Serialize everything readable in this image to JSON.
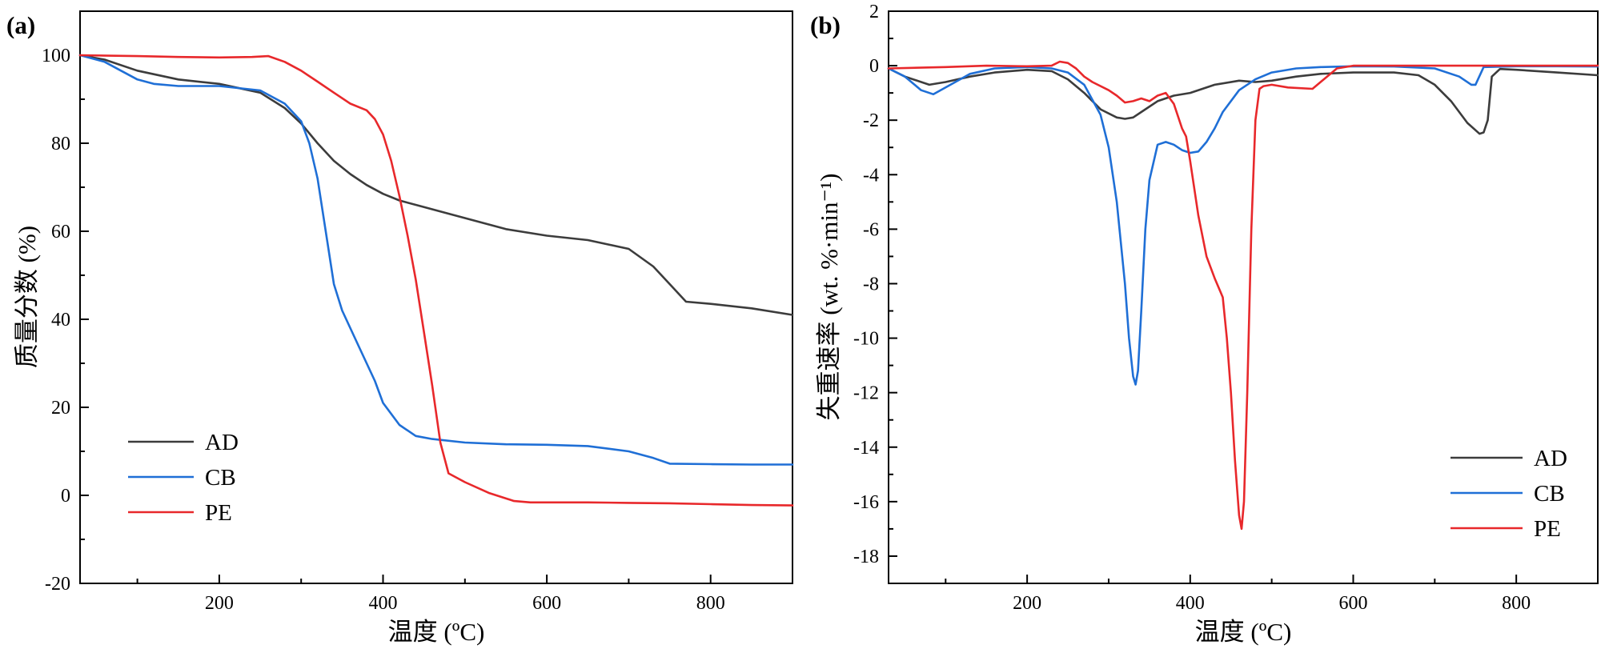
{
  "chart_data": [
    {
      "type": "line",
      "panel_label": "(a)",
      "xlabel": "温度 (ºC)",
      "ylabel": "质量分数 (%)",
      "xlim": [
        30,
        900
      ],
      "ylim": [
        -20,
        110
      ],
      "xticks": [
        200,
        400,
        600,
        800
      ],
      "yticks": [
        -20,
        0,
        20,
        40,
        60,
        80,
        100
      ],
      "grid": false,
      "legend_position": "bottom-left",
      "series": [
        {
          "name": "AD",
          "color": "#3c3c3c",
          "x": [
            30,
            60,
            100,
            150,
            200,
            250,
            280,
            300,
            320,
            340,
            360,
            380,
            400,
            420,
            450,
            480,
            500,
            550,
            600,
            650,
            700,
            730,
            750,
            770,
            800,
            850,
            900
          ],
          "y": [
            100,
            99,
            96.5,
            94.5,
            93.5,
            91.5,
            88,
            84.5,
            80,
            76,
            73,
            70.5,
            68.5,
            67,
            65.5,
            64,
            63,
            60.5,
            59,
            58,
            56,
            52,
            48,
            44,
            43.5,
            42.5,
            41
          ]
        },
        {
          "name": "CB",
          "color": "#1f6fd6",
          "x": [
            30,
            60,
            80,
            100,
            120,
            150,
            200,
            250,
            280,
            300,
            310,
            320,
            330,
            340,
            350,
            370,
            390,
            400,
            420,
            440,
            460,
            500,
            550,
            600,
            650,
            700,
            730,
            750,
            800,
            850,
            900
          ],
          "y": [
            100,
            98.5,
            96.5,
            94.5,
            93.5,
            93,
            93,
            92,
            89,
            85,
            80,
            72,
            60,
            48,
            42,
            34,
            26,
            21,
            16,
            13.5,
            12.8,
            12,
            11.6,
            11.5,
            11.2,
            10,
            8.5,
            7.2,
            7.1,
            7,
            7
          ]
        },
        {
          "name": "PE",
          "color": "#e8282b",
          "x": [
            30,
            100,
            150,
            200,
            240,
            260,
            280,
            300,
            320,
            340,
            360,
            380,
            390,
            400,
            410,
            420,
            430,
            440,
            450,
            460,
            470,
            480,
            500,
            530,
            560,
            580,
            600,
            650,
            700,
            750,
            800,
            850,
            900
          ],
          "y": [
            100,
            99.8,
            99.6,
            99.5,
            99.6,
            99.8,
            98.5,
            96.5,
            94,
            91.5,
            89,
            87.5,
            85.5,
            82,
            76,
            68,
            59,
            49,
            37,
            25,
            12,
            5,
            3,
            0.5,
            -1.3,
            -1.6,
            -1.6,
            -1.6,
            -1.7,
            -1.8,
            -2,
            -2.2,
            -2.3
          ]
        }
      ]
    },
    {
      "type": "line",
      "panel_label": "(b)",
      "xlabel": "温度 (ºC)",
      "ylabel": "失重速率 (wt. %·min⁻¹)",
      "xlim": [
        30,
        900
      ],
      "ylim": [
        -19,
        2
      ],
      "xticks": [
        200,
        400,
        600,
        800
      ],
      "yticks": [
        -18,
        -16,
        -14,
        -12,
        -10,
        -8,
        -6,
        -4,
        -2,
        0,
        2
      ],
      "grid": false,
      "legend_position": "bottom-right",
      "series": [
        {
          "name": "AD",
          "color": "#3c3c3c",
          "x": [
            30,
            50,
            80,
            100,
            130,
            160,
            200,
            230,
            250,
            270,
            290,
            310,
            320,
            330,
            340,
            360,
            380,
            400,
            430,
            460,
            480,
            500,
            530,
            560,
            600,
            650,
            680,
            700,
            720,
            740,
            755,
            760,
            765,
            770,
            780,
            800,
            850,
            900
          ],
          "y": [
            -0.1,
            -0.4,
            -0.7,
            -0.6,
            -0.4,
            -0.25,
            -0.15,
            -0.2,
            -0.5,
            -1,
            -1.6,
            -1.9,
            -1.95,
            -1.9,
            -1.7,
            -1.3,
            -1.1,
            -1.0,
            -0.7,
            -0.55,
            -0.6,
            -0.55,
            -0.4,
            -0.3,
            -0.25,
            -0.25,
            -0.35,
            -0.7,
            -1.3,
            -2.1,
            -2.5,
            -2.45,
            -2.0,
            -0.4,
            -0.12,
            -0.15,
            -0.25,
            -0.35
          ]
        },
        {
          "name": "CB",
          "color": "#1f6fd6",
          "x": [
            30,
            50,
            70,
            85,
            100,
            130,
            160,
            200,
            230,
            250,
            270,
            290,
            300,
            310,
            320,
            325,
            330,
            333,
            336,
            340,
            345,
            350,
            360,
            370,
            380,
            390,
            400,
            410,
            420,
            430,
            440,
            460,
            480,
            500,
            530,
            560,
            600,
            650,
            700,
            730,
            745,
            750,
            760,
            800,
            850,
            900
          ],
          "y": [
            -0.1,
            -0.4,
            -0.9,
            -1.05,
            -0.8,
            -0.3,
            -0.1,
            -0.05,
            -0.1,
            -0.25,
            -0.7,
            -1.8,
            -3,
            -5,
            -8,
            -10,
            -11.4,
            -11.7,
            -11.2,
            -9,
            -6,
            -4.2,
            -2.9,
            -2.8,
            -2.9,
            -3.1,
            -3.2,
            -3.15,
            -2.8,
            -2.3,
            -1.7,
            -0.9,
            -0.5,
            -0.25,
            -0.1,
            -0.05,
            -0.02,
            -0.03,
            -0.1,
            -0.4,
            -0.7,
            -0.7,
            -0.05,
            -0.02,
            -0.02,
            -0.03
          ]
        },
        {
          "name": "PE",
          "color": "#e8282b",
          "x": [
            30,
            100,
            150,
            200,
            230,
            240,
            250,
            260,
            270,
            280,
            300,
            310,
            320,
            330,
            340,
            350,
            360,
            370,
            380,
            390,
            395,
            400,
            410,
            420,
            430,
            440,
            445,
            450,
            455,
            460,
            463,
            466,
            470,
            475,
            480,
            485,
            490,
            500,
            520,
            550,
            560,
            580,
            600,
            650,
            700,
            750,
            800,
            850,
            900
          ],
          "y": [
            -0.1,
            -0.05,
            0,
            -0.02,
            0,
            0.15,
            0.1,
            -0.1,
            -0.4,
            -0.6,
            -0.9,
            -1.1,
            -1.35,
            -1.3,
            -1.2,
            -1.3,
            -1.1,
            -1.0,
            -1.4,
            -2.3,
            -2.6,
            -3.5,
            -5.5,
            -7,
            -7.8,
            -8.5,
            -10,
            -12,
            -14.5,
            -16.5,
            -17,
            -16,
            -12,
            -6,
            -2,
            -0.85,
            -0.75,
            -0.7,
            -0.8,
            -0.85,
            -0.6,
            -0.1,
            0,
            0,
            0,
            0,
            0,
            0,
            0
          ]
        }
      ]
    }
  ]
}
